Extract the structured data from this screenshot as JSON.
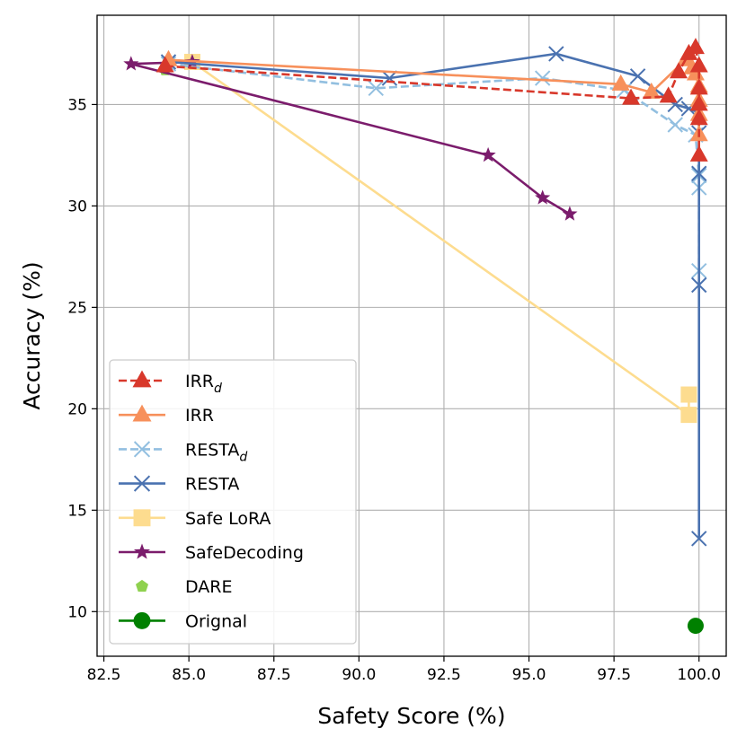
{
  "chart_data": {
    "type": "scatter",
    "xlabel": "Safety Score (%)",
    "ylabel": "Accuracy (%)",
    "xlim": [
      82.3,
      100.8
    ],
    "ylim": [
      7.8,
      39.4
    ],
    "xticks": [
      82.5,
      85.0,
      87.5,
      90.0,
      92.5,
      95.0,
      97.5,
      100.0
    ],
    "xtick_labels": [
      "82.5",
      "85.0",
      "87.5",
      "90.0",
      "92.5",
      "95.0",
      "97.5",
      "100.0"
    ],
    "yticks": [
      10,
      15,
      20,
      25,
      30,
      35
    ],
    "ytick_labels": [
      "10",
      "15",
      "20",
      "25",
      "30",
      "35"
    ],
    "grid": true,
    "legend_position": "lower-left",
    "series": [
      {
        "name": "Orignal",
        "legend_label": "Orignal",
        "color": "#008000",
        "marker": "circle",
        "linestyle": "solid",
        "points": [
          [
            99.9,
            9.3
          ]
        ]
      },
      {
        "name": "DARE",
        "legend_label": "DARE",
        "color": "#8fd14f",
        "marker": "pentagon",
        "linestyle": "none",
        "points": [
          [
            84.3,
            36.7
          ]
        ]
      },
      {
        "name": "Safe LoRA",
        "legend_label": "Safe LoRA",
        "color": "#fddc8f",
        "marker": "square",
        "linestyle": "solid",
        "points": [
          [
            85.1,
            37.1
          ],
          [
            99.7,
            19.7
          ],
          [
            99.7,
            20.7
          ]
        ]
      },
      {
        "name": "SafeDecoding",
        "legend_label": "SafeDecoding",
        "color": "#7b1c6c",
        "marker": "star",
        "linestyle": "solid",
        "points": [
          [
            85.1,
            37.1
          ],
          [
            83.3,
            37.0
          ],
          [
            93.8,
            32.5
          ],
          [
            95.4,
            30.4
          ],
          [
            96.2,
            29.6
          ]
        ]
      },
      {
        "name": "RESTA_d",
        "legend_label": "RESTA",
        "legend_sub": "d",
        "color": "#92bfe0",
        "marker": "x",
        "linestyle": "dashed",
        "points": [
          [
            84.4,
            37.0
          ],
          [
            90.5,
            35.8
          ],
          [
            95.4,
            36.3
          ],
          [
            97.8,
            35.7
          ],
          [
            99.3,
            34.0
          ],
          [
            99.9,
            33.5
          ],
          [
            100.0,
            31.5
          ],
          [
            100.0,
            30.9
          ],
          [
            100.0,
            26.8
          ]
        ]
      },
      {
        "name": "RESTA",
        "legend_label": "RESTA",
        "color": "#4a72b0",
        "marker": "x",
        "linestyle": "solid",
        "points": [
          [
            84.4,
            37.1
          ],
          [
            90.9,
            36.3
          ],
          [
            95.8,
            37.5
          ],
          [
            98.2,
            36.4
          ],
          [
            99.3,
            35.0
          ],
          [
            99.7,
            34.8
          ],
          [
            100.0,
            34.6
          ],
          [
            100.0,
            33.6
          ],
          [
            100.0,
            31.6
          ],
          [
            100.0,
            26.1
          ],
          [
            100.0,
            13.6
          ]
        ]
      },
      {
        "name": "IRR",
        "legend_label": "IRR",
        "color": "#f7905b",
        "marker": "triangle",
        "linestyle": "solid",
        "points": [
          [
            84.4,
            37.2
          ],
          [
            97.7,
            36.0
          ],
          [
            98.6,
            35.6
          ],
          [
            99.6,
            37.2
          ],
          [
            99.8,
            36.8
          ],
          [
            99.9,
            36.5
          ],
          [
            100.0,
            35.9
          ],
          [
            100.0,
            35.2
          ],
          [
            100.0,
            34.5
          ],
          [
            100.0,
            33.5
          ]
        ]
      },
      {
        "name": "IRR_d",
        "legend_label": "IRR",
        "legend_sub": "d",
        "color": "#d8382b",
        "marker": "triangle",
        "linestyle": "dashed",
        "points": [
          [
            84.3,
            36.9
          ],
          [
            98.0,
            35.3
          ],
          [
            99.1,
            35.4
          ],
          [
            99.4,
            36.6
          ],
          [
            99.7,
            37.5
          ],
          [
            99.9,
            37.8
          ],
          [
            100.0,
            36.9
          ],
          [
            100.0,
            35.8
          ],
          [
            100.0,
            35.0
          ],
          [
            100.0,
            34.3
          ],
          [
            100.0,
            32.5
          ]
        ]
      }
    ],
    "legend_order": [
      "IRR_d",
      "IRR",
      "RESTA_d",
      "RESTA",
      "Safe LoRA",
      "SafeDecoding",
      "DARE",
      "Orignal"
    ]
  }
}
